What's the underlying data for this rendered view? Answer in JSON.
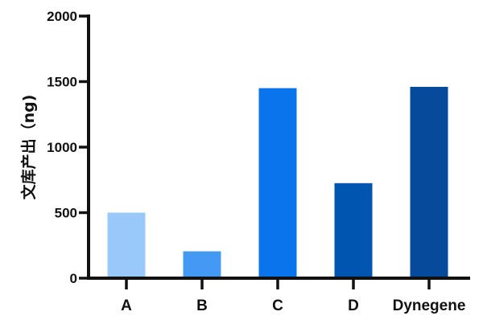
{
  "chart_data": {
    "type": "bar",
    "title": "",
    "xlabel": "",
    "ylabel": "文库产出（ng)",
    "categories": [
      "A",
      "B",
      "C",
      "D",
      "Dynegene"
    ],
    "values": [
      500,
      205,
      1450,
      725,
      1460
    ],
    "colors": [
      "#99c8fb",
      "#4499f5",
      "#0a74ed",
      "#0055b0",
      "#064a9c"
    ],
    "ylim": [
      0,
      2000
    ],
    "yticks": [
      0,
      500,
      1000,
      1500,
      2000
    ],
    "grid": false,
    "legend": "none"
  }
}
